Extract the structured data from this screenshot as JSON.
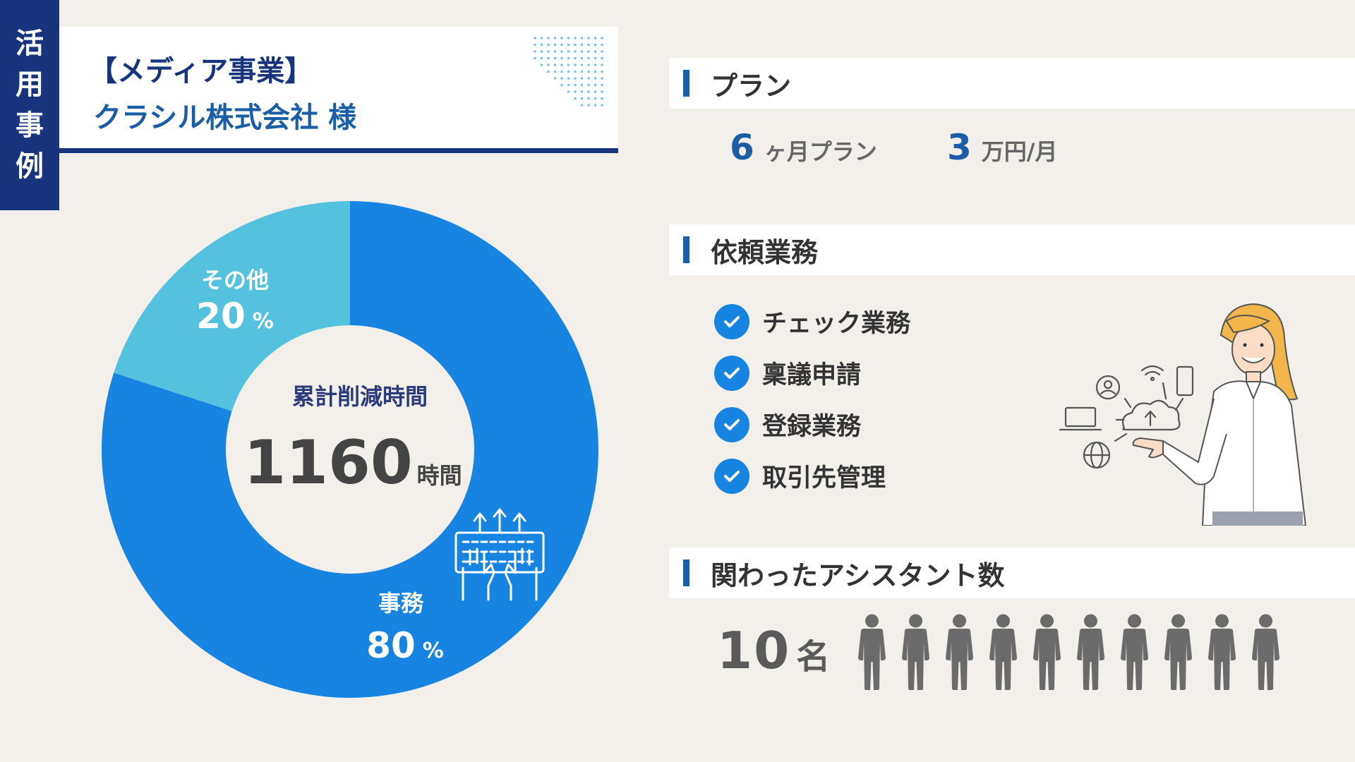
{
  "badge": {
    "chars": [
      "活",
      "用",
      "事",
      "例"
    ]
  },
  "title": {
    "category": "【メディア事業】",
    "company": "クラシル株式会社 様"
  },
  "colors": {
    "navy": "#17347c",
    "accent_blue": "#1b5ea6",
    "donut_main": "#1684e0",
    "donut_other": "#54c2df",
    "check": "#1684e0",
    "person": "#6b6b6b",
    "background": "#f3efea"
  },
  "chart_data": {
    "type": "pie",
    "donut": true,
    "categories": [
      "事務",
      "その他"
    ],
    "values": [
      80,
      20
    ],
    "value_labels": [
      "80",
      "20"
    ],
    "unit": "%",
    "center_title": "累計削減時間",
    "center_value": "1160",
    "center_unit": "時間"
  },
  "plan": {
    "heading": "プラン",
    "months_num": "6",
    "months_unit": "ヶ月プラン",
    "price_num": "3",
    "price_unit": "万円/月"
  },
  "tasks": {
    "heading": "依頼業務",
    "items": [
      "チェック業務",
      "稟議申請",
      "登録業務",
      "取引先管理"
    ]
  },
  "assistants": {
    "heading": "関わったアシスタント数",
    "count": "10",
    "unit": "名",
    "icon_count": 10
  },
  "icons": {
    "check": "check-icon",
    "person": "person-icon",
    "keyboard_hands": "keyboard-hands-icon",
    "woman": "woman-pointing-illustration"
  }
}
